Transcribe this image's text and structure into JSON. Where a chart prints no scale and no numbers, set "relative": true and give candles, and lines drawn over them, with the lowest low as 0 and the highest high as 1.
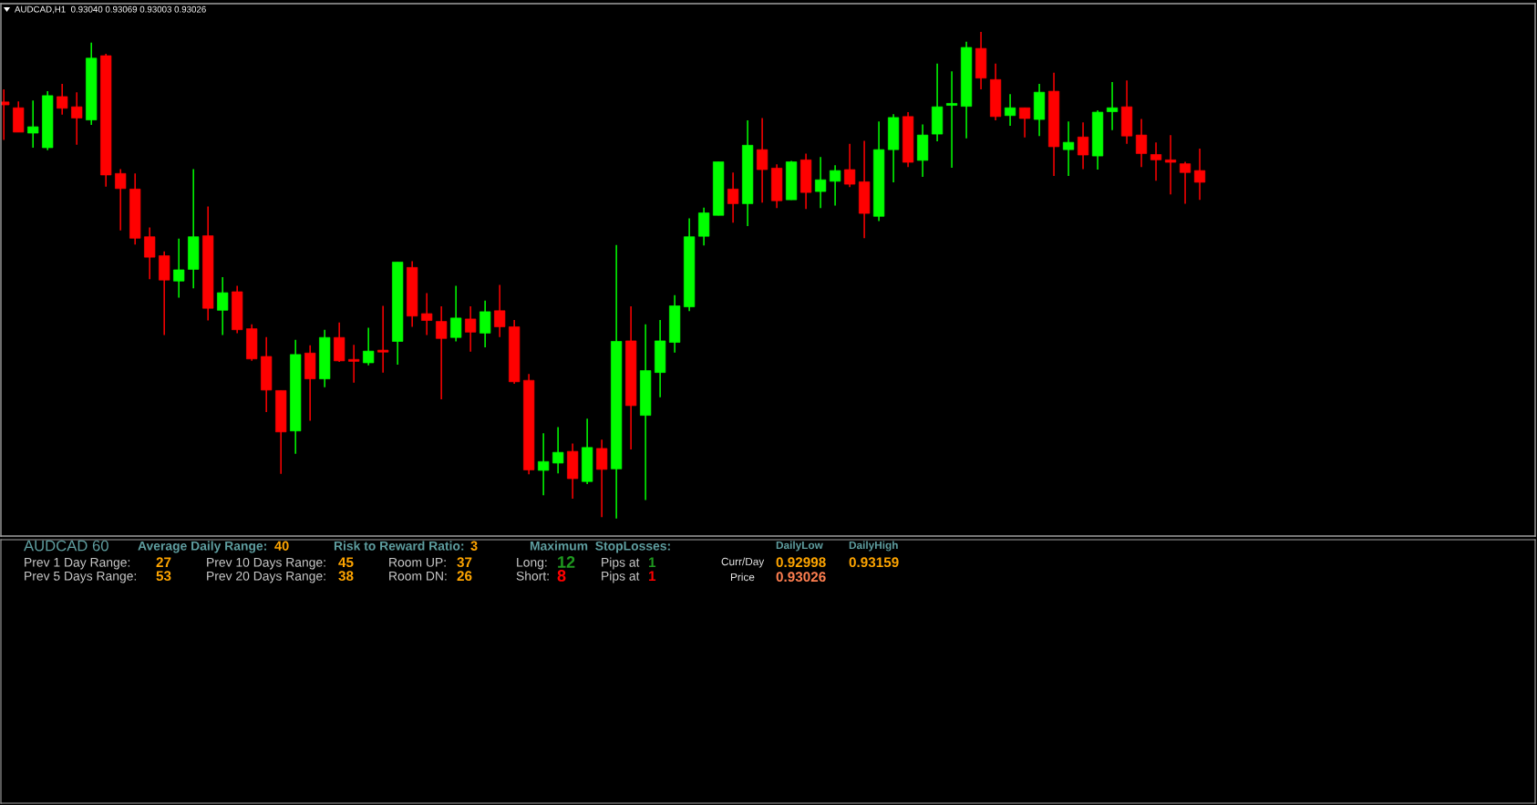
{
  "chart_data": [
    {
      "type": "candlestick",
      "title": "AUDCAD,H1  0.93040 0.93069 0.93003 0.93026",
      "relative": true,
      "categories": [
        null,
        null,
        null,
        null,
        null,
        null,
        null,
        null,
        null,
        null,
        null,
        null,
        null,
        null,
        null,
        null,
        null,
        null,
        null,
        null,
        null,
        null,
        null,
        null,
        null,
        null,
        null,
        null,
        null,
        null,
        null,
        null,
        null,
        null,
        null,
        null,
        null,
        null,
        null,
        null,
        null,
        null,
        null,
        null,
        null,
        null,
        null,
        null,
        null,
        null,
        null,
        null,
        null,
        null,
        null,
        null,
        null,
        null,
        null,
        null,
        null,
        null,
        null,
        null,
        null,
        null,
        null,
        null,
        null,
        null,
        null,
        null,
        null,
        null,
        null,
        null,
        null,
        null,
        null,
        null,
        null,
        null,
        null
      ],
      "ohlc": [
        [
          0.856,
          0.882,
          0.778,
          0.85
        ],
        [
          0.844,
          0.857,
          0.794,
          0.794
        ],
        [
          0.792,
          0.859,
          0.762,
          0.805
        ],
        [
          0.762,
          0.878,
          0.757,
          0.869
        ],
        [
          0.867,
          0.893,
          0.83,
          0.843
        ],
        [
          0.846,
          0.876,
          0.768,
          0.823
        ],
        [
          0.819,
          0.978,
          0.809,
          0.946
        ],
        [
          0.951,
          0.955,
          0.682,
          0.706
        ],
        [
          0.709,
          0.718,
          0.592,
          0.678
        ],
        [
          0.677,
          0.709,
          0.563,
          0.576
        ],
        [
          0.579,
          0.598,
          0.492,
          0.537
        ],
        [
          0.54,
          0.549,
          0.377,
          0.49
        ],
        [
          0.488,
          0.575,
          0.454,
          0.511
        ],
        [
          0.512,
          0.718,
          0.473,
          0.579
        ],
        [
          0.581,
          0.641,
          0.407,
          0.432
        ],
        [
          0.428,
          0.496,
          0.377,
          0.464
        ],
        [
          0.466,
          0.478,
          0.381,
          0.388
        ],
        [
          0.39,
          0.399,
          0.324,
          0.328
        ],
        [
          0.333,
          0.373,
          0.219,
          0.264
        ],
        [
          0.263,
          0.263,
          0.092,
          0.178
        ],
        [
          0.18,
          0.367,
          0.133,
          0.337
        ],
        [
          0.34,
          0.356,
          0.201,
          0.287
        ],
        [
          0.287,
          0.388,
          0.27,
          0.372
        ],
        [
          0.372,
          0.403,
          0.322,
          0.324
        ],
        [
          0.326,
          0.357,
          0.279,
          0.323
        ],
        [
          0.32,
          0.392,
          0.315,
          0.344
        ],
        [
          0.346,
          0.437,
          0.3,
          0.342
        ],
        [
          0.364,
          0.527,
          0.316,
          0.527
        ],
        [
          0.516,
          0.529,
          0.394,
          0.416
        ],
        [
          0.421,
          0.463,
          0.377,
          0.407
        ],
        [
          0.405,
          0.436,
          0.245,
          0.37
        ],
        [
          0.372,
          0.478,
          0.364,
          0.412
        ],
        [
          0.41,
          0.436,
          0.343,
          0.383
        ],
        [
          0.381,
          0.448,
          0.352,
          0.425
        ],
        [
          0.427,
          0.48,
          0.373,
          0.394
        ],
        [
          0.394,
          0.408,
          0.277,
          0.281
        ],
        [
          0.284,
          0.297,
          0.091,
          0.1
        ],
        [
          0.099,
          0.175,
          0.048,
          0.117
        ],
        [
          0.114,
          0.188,
          0.093,
          0.136
        ],
        [
          0.138,
          0.154,
          0.041,
          0.082
        ],
        [
          0.076,
          0.205,
          0.071,
          0.146
        ],
        [
          0.144,
          0.162,
          0.003,
          0.101
        ],
        [
          0.102,
          0.562,
          0.0,
          0.364
        ],
        [
          0.365,
          0.436,
          0.142,
          0.232
        ],
        [
          0.212,
          0.399,
          0.038,
          0.304
        ],
        [
          0.3,
          0.408,
          0.249,
          0.365
        ],
        [
          0.362,
          0.459,
          0.341,
          0.437
        ],
        [
          0.435,
          0.617,
          0.426,
          0.579
        ],
        [
          0.58,
          0.639,
          0.561,
          0.628
        ],
        [
          0.623,
          0.733,
          0.623,
          0.733
        ],
        [
          0.677,
          0.711,
          0.608,
          0.647
        ],
        [
          0.647,
          0.818,
          0.601,
          0.767
        ],
        [
          0.758,
          0.823,
          0.649,
          0.717
        ],
        [
          0.72,
          0.728,
          0.638,
          0.653
        ],
        [
          0.655,
          0.735,
          0.655,
          0.733
        ],
        [
          0.737,
          0.75,
          0.636,
          0.67
        ],
        [
          0.672,
          0.743,
          0.638,
          0.696
        ],
        [
          0.693,
          0.726,
          0.643,
          0.715
        ],
        [
          0.717,
          0.77,
          0.681,
          0.687
        ],
        [
          0.692,
          0.776,
          0.576,
          0.627
        ],
        [
          0.621,
          0.816,
          0.611,
          0.758
        ],
        [
          0.758,
          0.831,
          0.691,
          0.824
        ],
        [
          0.826,
          0.835,
          0.722,
          0.732
        ],
        [
          0.736,
          0.81,
          0.702,
          0.788
        ],
        [
          0.79,
          0.935,
          0.775,
          0.846
        ],
        [
          0.849,
          0.919,
          0.721,
          0.852
        ],
        [
          0.847,
          0.98,
          0.781,
          0.968
        ],
        [
          0.966,
          1.0,
          0.882,
          0.905
        ],
        [
          0.902,
          0.935,
          0.818,
          0.826
        ],
        [
          0.828,
          0.872,
          0.807,
          0.844
        ],
        [
          0.844,
          0.844,
          0.783,
          0.822
        ],
        [
          0.82,
          0.893,
          0.786,
          0.876
        ],
        [
          0.878,
          0.916,
          0.704,
          0.764
        ],
        [
          0.758,
          0.816,
          0.704,
          0.773
        ],
        [
          0.784,
          0.814,
          0.718,
          0.747
        ],
        [
          0.745,
          0.839,
          0.717,
          0.835
        ],
        [
          0.836,
          0.897,
          0.798,
          0.844
        ],
        [
          0.846,
          0.9,
          0.77,
          0.786
        ],
        [
          0.788,
          0.821,
          0.722,
          0.75
        ],
        [
          0.748,
          0.773,
          0.694,
          0.737
        ],
        [
          0.737,
          0.788,
          0.666,
          0.732
        ],
        [
          0.729,
          0.733,
          0.647,
          0.711
        ],
        [
          0.715,
          0.76,
          0.655,
          0.691
        ]
      ],
      "colors": [
        "#ff0000",
        "#ff0000",
        "#00ff00",
        "#00ff00",
        "#ff0000",
        "#ff0000",
        "#00ff00",
        "#ff0000",
        "#ff0000",
        "#ff0000",
        "#ff0000",
        "#ff0000",
        "#00ff00",
        "#00ff00",
        "#ff0000",
        "#00ff00",
        "#ff0000",
        "#ff0000",
        "#ff0000",
        "#ff0000",
        "#00ff00",
        "#ff0000",
        "#00ff00",
        "#ff0000",
        "#ff0000",
        "#00ff00",
        "#ff0000",
        "#00ff00",
        "#ff0000",
        "#ff0000",
        "#ff0000",
        "#00ff00",
        "#ff0000",
        "#00ff00",
        "#ff0000",
        "#ff0000",
        "#ff0000",
        "#00ff00",
        "#00ff00",
        "#ff0000",
        "#00ff00",
        "#ff0000",
        "#00ff00",
        "#ff0000",
        "#00ff00",
        "#00ff00",
        "#00ff00",
        "#00ff00",
        "#00ff00",
        "#00ff00",
        "#ff0000",
        "#00ff00",
        "#ff0000",
        "#ff0000",
        "#00ff00",
        "#ff0000",
        "#00ff00",
        "#00ff00",
        "#ff0000",
        "#ff0000",
        "#00ff00",
        "#00ff00",
        "#ff0000",
        "#00ff00",
        "#00ff00",
        "#00ff00",
        "#00ff00",
        "#ff0000",
        "#ff0000",
        "#00ff00",
        "#ff0000",
        "#00ff00",
        "#ff0000",
        "#00ff00",
        "#ff0000",
        "#00ff00",
        "#00ff00",
        "#ff0000",
        "#ff0000",
        "#ff0000",
        "#ff0000",
        "#ff0000",
        "#ff0000"
      ],
      "grid": false
    },
    {
      "type": "other",
      "annotations": [
        "AUDCAD 60",
        "Average Daily Range:",
        "40",
        "Risk to Reward Ratio:",
        "3",
        "Maximum  StopLosses:",
        "DailyLow",
        "DailyHigh",
        "Prev 1 Day Range:",
        "27",
        "Prev 10 Days Range:",
        "45",
        "Room UP:",
        "37",
        "Long:",
        "12",
        "Pips at",
        "1",
        "Curr/Day",
        "0.92998",
        "0.93159",
        "Prev 5 Days Range:",
        "53",
        "Prev 20 Days Range:",
        "38",
        "Room DN:",
        "26",
        "Short:",
        "8",
        "Pips at",
        "1",
        "Price",
        "0.93026"
      ],
      "colors": [
        "#5f9ea0",
        "#5f9ea0",
        "#ffa500",
        "#5f9ea0",
        "#ffa500",
        "#5f9ea0",
        "#5f9ea0",
        "#5f9ea0",
        "#c8c8c8",
        "#ffa500",
        "#c8c8c8",
        "#ffa500",
        "#c8c8c8",
        "#ffa500",
        "#c8c8c8",
        "#1f9a1f",
        "#c8c8c8",
        "#1f9a1f",
        "#e6e6e6",
        "#ffa500",
        "#ffa500",
        "#c8c8c8",
        "#ffa500",
        "#c8c8c8",
        "#ffa500",
        "#c8c8c8",
        "#ffa500",
        "#c8c8c8",
        "#ff0000",
        "#c8c8c8",
        "#ff0000",
        "#e6e6e6",
        "#ff7f50"
      ]
    }
  ]
}
